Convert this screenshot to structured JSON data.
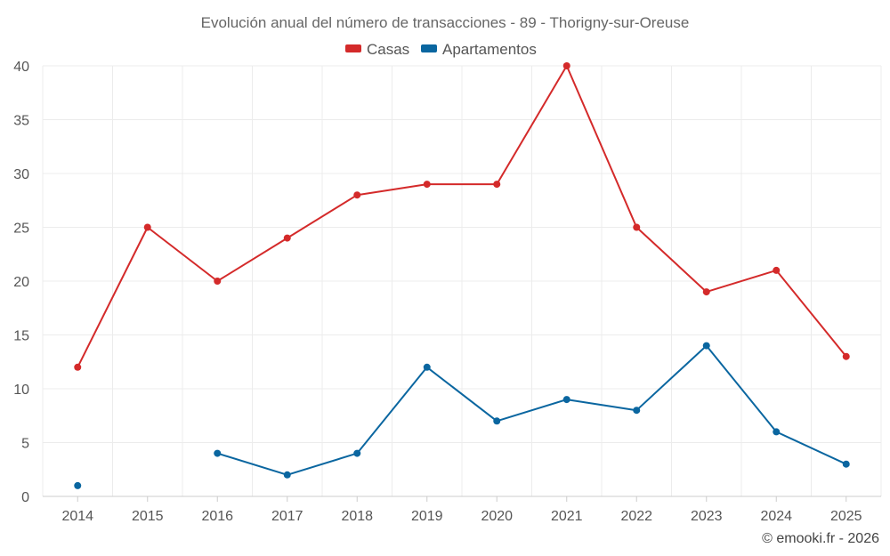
{
  "chart_data": {
    "type": "line",
    "title": "Evolución anual del número de transacciones - 89 - Thorigny-sur-Oreuse",
    "categories": [
      "2014",
      "2015",
      "2016",
      "2017",
      "2018",
      "2019",
      "2020",
      "2021",
      "2022",
      "2023",
      "2024",
      "2025"
    ],
    "series": [
      {
        "name": "Casas",
        "color": "#d42a2a",
        "values": [
          12,
          25,
          20,
          24,
          28,
          29,
          29,
          40,
          25,
          19,
          21,
          13
        ]
      },
      {
        "name": "Apartamentos",
        "color": "#0a66a0",
        "values": [
          1,
          null,
          4,
          2,
          4,
          12,
          7,
          9,
          8,
          14,
          6,
          3
        ]
      }
    ],
    "ylim": [
      0,
      40
    ],
    "yticks": [
      0,
      5,
      10,
      15,
      20,
      25,
      30,
      35,
      40
    ],
    "xlabel": "",
    "ylabel": "",
    "grid": true,
    "legend_position": "top-center"
  },
  "credit": "© emooki.fr - 2026"
}
